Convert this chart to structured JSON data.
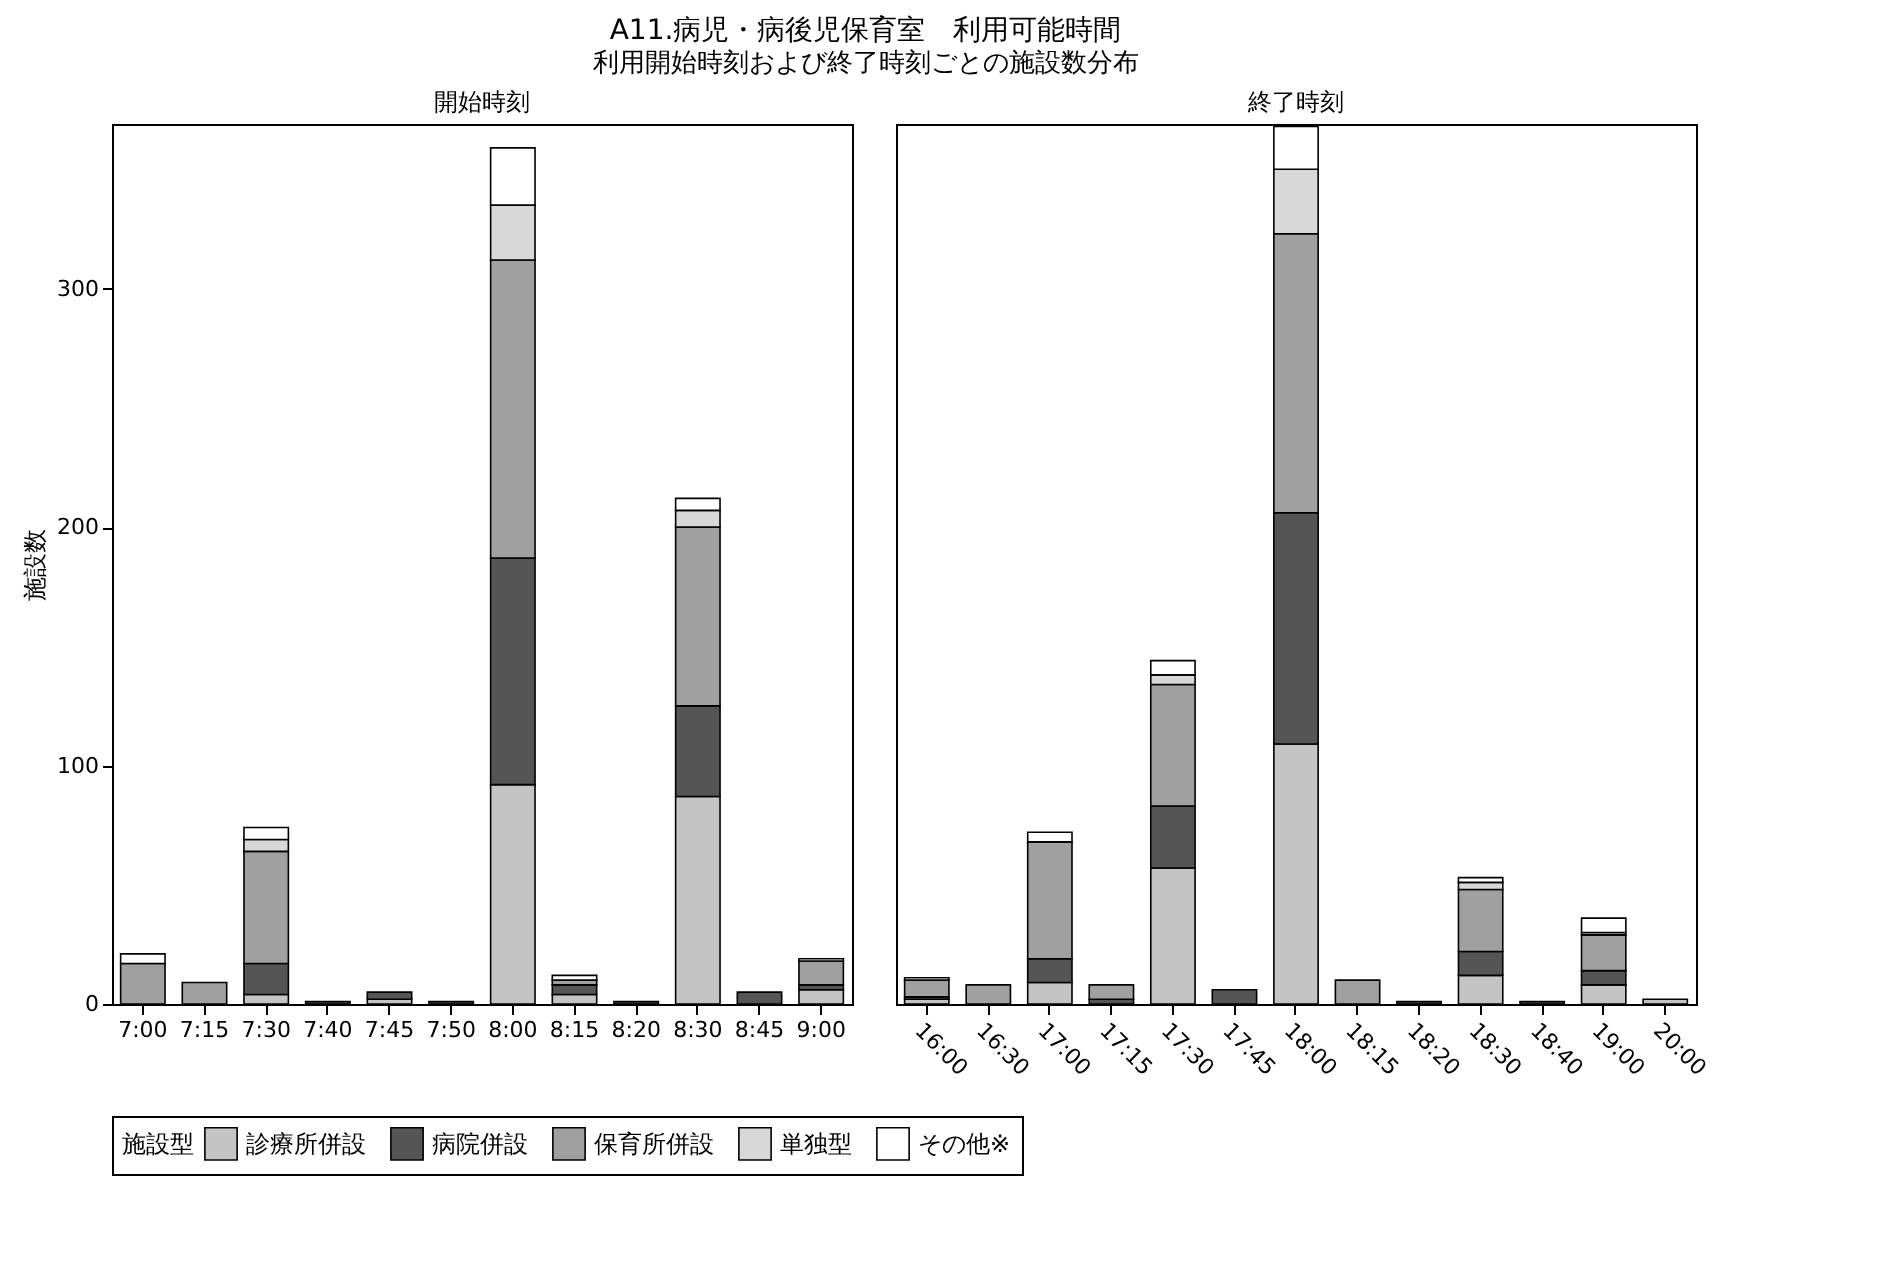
{
  "chart_data": [
    {
      "type": "bar",
      "title": "A11.病児・病後児保育室　利用可能時間",
      "subtitle": "利用開始時刻および終了時刻ごとの施設数分布",
      "annotations": [
        "開始時刻"
      ],
      "ylabel": "施設数",
      "legend_title": "施設型",
      "legend": "bottom",
      "stacked": true,
      "grid": false,
      "ylim": [
        0,
        369
      ],
      "yticks": [
        0,
        100,
        200,
        300
      ],
      "categories": [
        "7:00",
        "7:15",
        "7:30",
        "7:40",
        "7:45",
        "7:50",
        "8:00",
        "8:15",
        "8:20",
        "8:30",
        "8:45",
        "9:00"
      ],
      "series": [
        {
          "name": "診療所併設",
          "color": "#c4c4c4",
          "values": [
            0,
            0,
            4,
            0,
            2,
            0,
            92,
            4,
            0,
            87,
            null,
            6
          ]
        },
        {
          "name": "病院併設",
          "color": "#555555",
          "values": [
            0,
            0,
            13,
            1,
            3,
            1,
            95,
            4,
            1,
            38,
            5,
            2
          ]
        },
        {
          "name": "保育所併設",
          "color": "#a0a0a0",
          "values": [
            17,
            9,
            47,
            0,
            0,
            0,
            125,
            2,
            0,
            75,
            0,
            10
          ]
        },
        {
          "name": "単独型",
          "color": "#d8d8d8",
          "values": [
            0,
            0,
            5,
            0,
            0,
            0,
            23,
            null,
            0,
            7,
            0,
            0
          ]
        },
        {
          "name": "その他※",
          "color": "#ffffff",
          "values": [
            4,
            0,
            5,
            0,
            0,
            0,
            24,
            2,
            0,
            5,
            0,
            1
          ]
        }
      ]
    },
    {
      "type": "bar",
      "annotations": [
        "終了時刻"
      ],
      "stacked": true,
      "grid": false,
      "tick_labels": "x",
      "ylim": [
        0,
        369
      ],
      "yticks": [
        0,
        100,
        200,
        300
      ],
      "categories": [
        "16:00",
        "16:30",
        "17:00",
        "17:15",
        "17:30",
        "17:45",
        "18:00",
        "18:15",
        "18:20",
        "18:30",
        "18:40",
        "19:00",
        "20:00"
      ],
      "series": [
        {
          "name": "診療所併設",
          "color": "#c4c4c4",
          "values": [
            2,
            0,
            9,
            0,
            57,
            0,
            109,
            0,
            0,
            12,
            0,
            8,
            2
          ]
        },
        {
          "name": "病院併設",
          "color": "#555555",
          "values": [
            1,
            0,
            10,
            2,
            26,
            6,
            97,
            0,
            1,
            10,
            1,
            6,
            0
          ]
        },
        {
          "name": "保育所併設",
          "color": "#a0a0a0",
          "values": [
            7,
            8,
            49,
            6,
            51,
            0,
            117,
            10,
            0,
            26,
            0,
            15,
            0
          ]
        },
        {
          "name": "単独型",
          "color": "#d8d8d8",
          "values": [
            0,
            0,
            0,
            0,
            4,
            0,
            27,
            0,
            0,
            3,
            0,
            1,
            0
          ]
        },
        {
          "name": "その他※",
          "color": "#ffffff",
          "values": [
            1,
            0,
            4,
            0,
            6,
            0,
            18,
            0,
            0,
            2,
            0,
            6,
            0
          ]
        }
      ]
    }
  ]
}
